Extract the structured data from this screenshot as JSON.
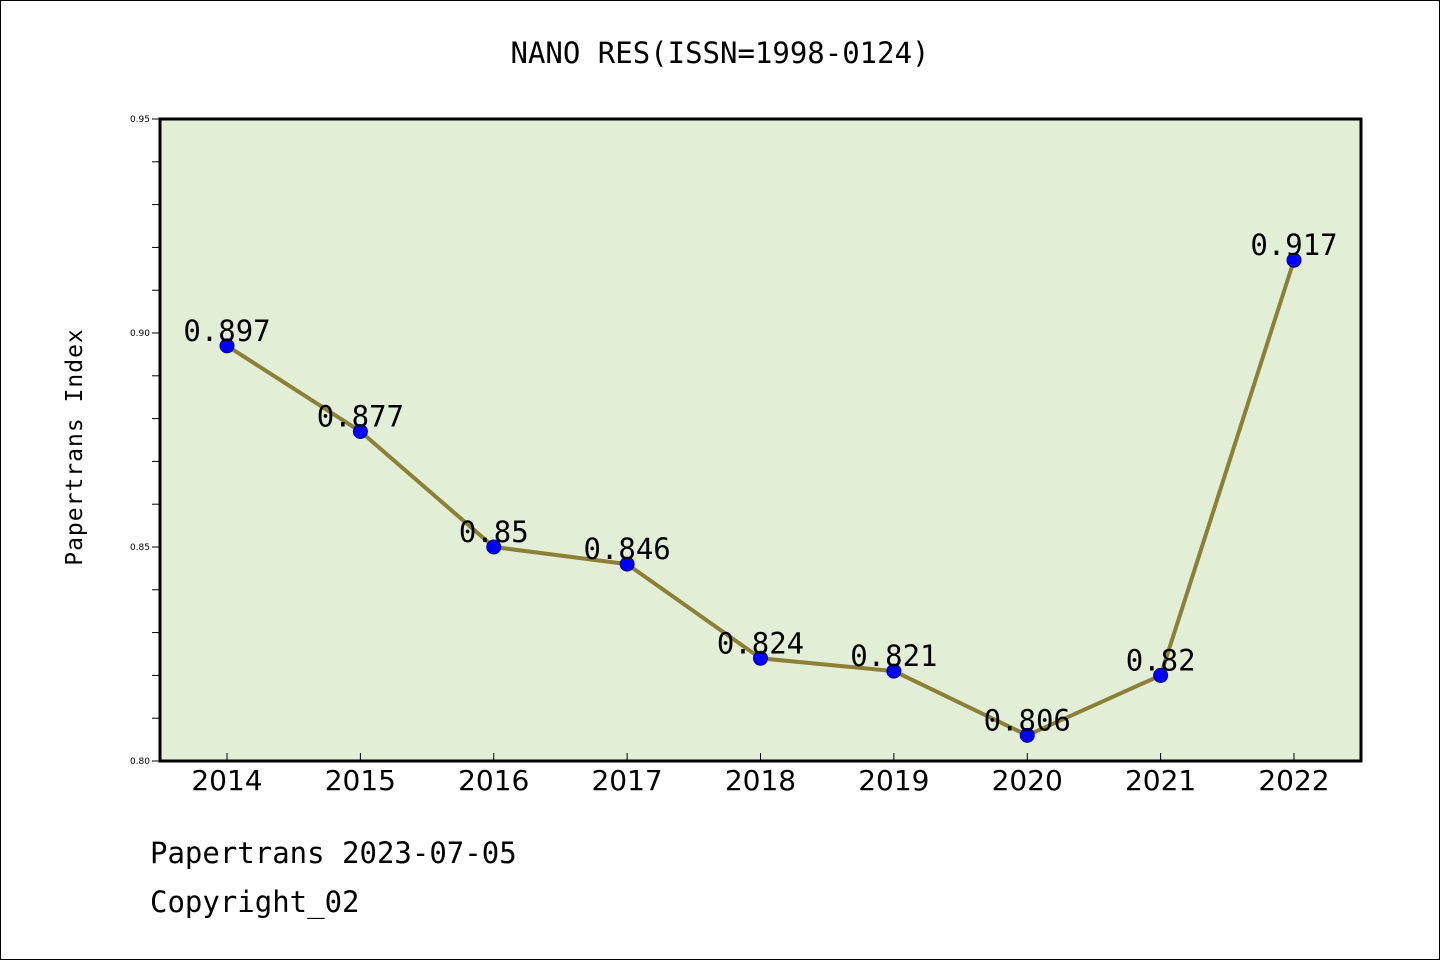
{
  "chart_data": {
    "type": "line",
    "title": "NANO RES(ISSN=1998-0124)",
    "xlabel": "",
    "ylabel": "Papertrans Index",
    "categories": [
      "2014",
      "2015",
      "2016",
      "2017",
      "2018",
      "2019",
      "2020",
      "2021",
      "2022"
    ],
    "values": [
      0.897,
      0.877,
      0.85,
      0.846,
      0.824,
      0.821,
      0.806,
      0.82,
      0.917
    ],
    "data_labels": [
      "0.897",
      "0.877",
      "0.85",
      "0.846",
      "0.824",
      "0.821",
      "0.806",
      "0.82",
      "0.917"
    ],
    "ylim": [
      0.8,
      0.95
    ],
    "yticks": [
      "0.80",
      "0.85",
      "0.90",
      "0.95"
    ],
    "grid": false,
    "line_color": "#8b8036",
    "marker_color": "#0000ff",
    "plot_background": "#e2efd6"
  },
  "footer": {
    "date_text": "Papertrans 2023-07-05",
    "copyright_text": "Copyright_02"
  }
}
